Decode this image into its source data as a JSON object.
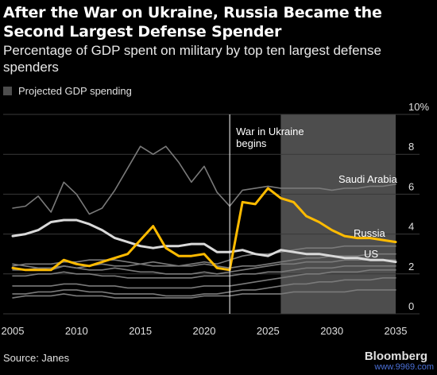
{
  "header": {
    "title": "After the War on Ukraine, Russia Became the Second Largest Defense Spender",
    "subtitle": "Percentage of GDP spent on military by top ten largest defense spenders"
  },
  "legend": {
    "label": "Projected GDP spending",
    "color": "#4d4d4d"
  },
  "footer": {
    "source": "Source: Janes",
    "brand": "Bloomberg",
    "watermark": "www.9969.com"
  },
  "chart_data": {
    "type": "line",
    "xlabel": "",
    "ylabel": "",
    "xlim": [
      2005,
      2035
    ],
    "ylim": [
      0,
      10
    ],
    "x_ticks": [
      "2005",
      "2010",
      "2015",
      "2020",
      "2025",
      "2030",
      "2035"
    ],
    "x_tick_values": [
      2005,
      2010,
      2015,
      2020,
      2025,
      2030,
      2035
    ],
    "y_ticks": [
      "0",
      "2",
      "4",
      "6",
      "8",
      "10%"
    ],
    "y_tick_values": [
      0,
      2,
      4,
      6,
      8,
      10
    ],
    "grid": true,
    "projection_start": 2026,
    "annotation": {
      "text": [
        "War in Ukraine",
        "begins"
      ],
      "x": 2022
    },
    "colors": {
      "russia": "#ffbb00",
      "us": "#d9d9d9",
      "other": "#7a7a7a",
      "grid": "#3a3a3a",
      "projection": "#4d4d4d"
    },
    "x": [
      2005,
      2006,
      2007,
      2008,
      2009,
      2010,
      2011,
      2012,
      2013,
      2014,
      2015,
      2016,
      2017,
      2018,
      2019,
      2020,
      2021,
      2022,
      2023,
      2024,
      2025,
      2026,
      2027,
      2028,
      2029,
      2030,
      2031,
      2032,
      2033,
      2034,
      2035
    ],
    "series": [
      {
        "name": "Saudi Arabia",
        "role": "other",
        "values": [
          5.3,
          5.4,
          5.9,
          5.1,
          6.6,
          6.0,
          5.0,
          5.3,
          6.2,
          7.3,
          8.4,
          8.0,
          8.4,
          7.6,
          6.6,
          7.4,
          6.1,
          5.4,
          6.2,
          6.3,
          6.4,
          6.3,
          6.3,
          6.3,
          6.3,
          6.2,
          6.3,
          6.3,
          6.4,
          6.4,
          6.5
        ]
      },
      {
        "name": "Russia",
        "role": "russia",
        "values": [
          2.3,
          2.2,
          2.2,
          2.2,
          2.7,
          2.5,
          2.4,
          2.6,
          2.8,
          3.0,
          3.7,
          4.4,
          3.3,
          2.9,
          2.9,
          3.0,
          2.3,
          2.2,
          5.6,
          5.5,
          6.3,
          5.8,
          5.6,
          4.9,
          4.6,
          4.2,
          3.9,
          3.8,
          3.8,
          3.7,
          3.6
        ]
      },
      {
        "name": "US",
        "role": "us",
        "values": [
          3.9,
          4.0,
          4.2,
          4.6,
          4.7,
          4.7,
          4.5,
          4.2,
          3.8,
          3.6,
          3.4,
          3.3,
          3.4,
          3.4,
          3.5,
          3.5,
          3.1,
          3.1,
          3.2,
          3.0,
          2.9,
          3.2,
          3.1,
          3.0,
          3.0,
          2.9,
          2.8,
          2.8,
          2.7,
          2.7,
          2.6
        ]
      },
      {
        "name": "",
        "role": "other",
        "values": [
          2.5,
          2.4,
          2.3,
          2.3,
          2.4,
          2.3,
          2.4,
          2.5,
          2.4,
          2.4,
          2.5,
          2.6,
          2.5,
          2.4,
          2.5,
          2.6,
          2.5,
          2.7,
          2.9,
          3.0,
          3.0,
          3.1,
          3.2,
          3.3,
          3.3,
          3.3,
          3.4,
          3.4,
          3.4,
          3.4,
          3.4
        ]
      },
      {
        "name": "",
        "role": "other",
        "values": [
          2.4,
          2.5,
          2.5,
          2.5,
          2.6,
          2.6,
          2.7,
          2.7,
          2.7,
          2.6,
          2.5,
          2.4,
          2.4,
          2.4,
          2.4,
          2.5,
          2.4,
          2.3,
          2.4,
          2.4,
          2.5,
          2.6,
          2.7,
          2.8,
          2.8,
          2.9,
          2.9,
          2.9,
          3.0,
          3.0,
          3.0
        ]
      },
      {
        "name": "",
        "role": "other",
        "values": [
          2.2,
          2.2,
          2.3,
          2.2,
          2.4,
          2.3,
          2.2,
          2.2,
          2.3,
          2.2,
          2.1,
          2.1,
          2.0,
          2.0,
          2.0,
          2.1,
          2.0,
          2.1,
          2.2,
          2.3,
          2.4,
          2.5,
          2.5,
          2.6,
          2.6,
          2.6,
          2.7,
          2.7,
          2.7,
          2.7,
          2.7
        ]
      },
      {
        "name": "",
        "role": "other",
        "values": [
          1.9,
          1.9,
          2.0,
          2.0,
          2.1,
          2.0,
          2.0,
          1.9,
          1.9,
          1.8,
          1.8,
          1.8,
          1.8,
          1.8,
          1.8,
          1.9,
          1.9,
          1.9,
          2.0,
          2.0,
          2.1,
          2.1,
          2.2,
          2.3,
          2.3,
          2.3,
          2.4,
          2.4,
          2.4,
          2.4,
          2.4
        ]
      },
      {
        "name": "",
        "role": "other",
        "values": [
          1.4,
          1.4,
          1.4,
          1.4,
          1.5,
          1.5,
          1.4,
          1.4,
          1.4,
          1.3,
          1.3,
          1.3,
          1.3,
          1.3,
          1.3,
          1.4,
          1.4,
          1.4,
          1.5,
          1.6,
          1.7,
          1.8,
          1.9,
          2.0,
          2.0,
          2.1,
          2.1,
          2.1,
          2.2,
          2.2,
          2.2
        ]
      },
      {
        "name": "",
        "role": "other",
        "values": [
          1.0,
          1.0,
          1.1,
          1.1,
          1.2,
          1.2,
          1.1,
          1.1,
          1.0,
          1.0,
          1.0,
          1.0,
          0.9,
          0.9,
          0.9,
          1.0,
          1.0,
          1.1,
          1.2,
          1.2,
          1.3,
          1.4,
          1.5,
          1.5,
          1.6,
          1.6,
          1.7,
          1.7,
          1.7,
          1.8,
          1.8
        ]
      },
      {
        "name": "",
        "role": "other",
        "values": [
          0.8,
          0.9,
          0.9,
          0.9,
          1.0,
          0.9,
          0.9,
          0.9,
          0.8,
          0.8,
          0.8,
          0.8,
          0.8,
          0.8,
          0.8,
          0.9,
          0.9,
          0.9,
          1.0,
          1.0,
          1.0,
          1.0,
          1.1,
          1.1,
          1.1,
          1.1,
          1.1,
          1.2,
          1.2,
          1.2,
          1.2
        ]
      }
    ],
    "labels": [
      {
        "series": "Saudi Arabia",
        "text": "Saudi Arabia"
      },
      {
        "series": "Russia",
        "text": "Russia"
      },
      {
        "series": "US",
        "text": "US"
      }
    ]
  }
}
